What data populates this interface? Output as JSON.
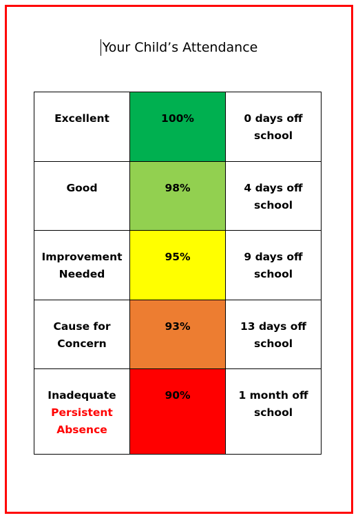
{
  "title": "Your Child’s Attendance",
  "rows": [
    {
      "label": "Excellent",
      "percent": "100%",
      "days": "0 days off school",
      "color": "#00b050"
    },
    {
      "label": "Good",
      "percent": "98%",
      "days": "4 days off school",
      "color": "#92d050"
    },
    {
      "label": "Improvement Needed",
      "percent": "95%",
      "days": "9 days off school",
      "color": "#ffff00"
    },
    {
      "label": "Cause for Concern",
      "percent": "93%",
      "days": "13 days off school",
      "color": "#ed7d31"
    },
    {
      "label": "Inadequate",
      "sublabel": "Persistent Absence",
      "percent": "90%",
      "days": "1 month off school",
      "color": "#ff0000"
    }
  ],
  "colors": {
    "frame": "#ff0000",
    "sublabel": "#ff0000"
  }
}
